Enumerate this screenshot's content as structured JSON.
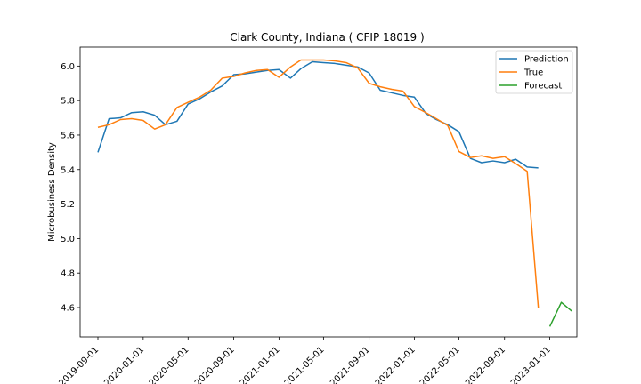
{
  "chart_data": {
    "type": "line",
    "title": "Clark County, Indiana ( CFIP 18019 )",
    "xlabel": "",
    "ylabel": "Microbusiness Density",
    "x_ticks": [
      "2019-09-01",
      "2020-01-01",
      "2020-05-01",
      "2020-09-01",
      "2021-01-01",
      "2021-05-01",
      "2021-09-01",
      "2022-01-01",
      "2022-05-01",
      "2022-09-01",
      "2023-01-01"
    ],
    "y_ticks": [
      "4.6",
      "4.8",
      "5.0",
      "5.2",
      "5.4",
      "5.6",
      "5.8",
      "6.0"
    ],
    "ylim": [
      4.43,
      6.11
    ],
    "xlim": [
      "2019-07-15",
      "2023-03-15"
    ],
    "grid": false,
    "legend_position": "upper right",
    "colors": {
      "Prediction": "#1f77b4",
      "True": "#ff7f0e",
      "Forecast": "#2ca02c"
    },
    "series": [
      {
        "name": "Prediction",
        "x": [
          "2019-09-01",
          "2019-10-01",
          "2019-11-01",
          "2019-12-01",
          "2020-01-01",
          "2020-02-01",
          "2020-03-01",
          "2020-04-01",
          "2020-05-01",
          "2020-06-01",
          "2020-07-01",
          "2020-08-01",
          "2020-09-01",
          "2020-10-01",
          "2020-11-01",
          "2020-12-01",
          "2021-01-01",
          "2021-02-01",
          "2021-03-01",
          "2021-04-01",
          "2021-05-01",
          "2021-06-01",
          "2021-07-01",
          "2021-08-01",
          "2021-09-01",
          "2021-10-01",
          "2021-11-01",
          "2021-12-01",
          "2022-01-01",
          "2022-02-01",
          "2022-03-01",
          "2022-04-01",
          "2022-05-01",
          "2022-06-01",
          "2022-07-01",
          "2022-08-01",
          "2022-09-01",
          "2022-10-01",
          "2022-11-01",
          "2022-12-01"
        ],
        "values": [
          5.5,
          5.695,
          5.7,
          5.73,
          5.735,
          5.715,
          5.66,
          5.68,
          5.78,
          5.81,
          5.85,
          5.885,
          5.95,
          5.955,
          5.965,
          5.975,
          5.98,
          5.93,
          5.985,
          6.025,
          6.02,
          6.015,
          6.005,
          5.995,
          5.96,
          5.86,
          5.845,
          5.83,
          5.82,
          5.725,
          5.69,
          5.66,
          5.62,
          5.465,
          5.44,
          5.45,
          5.44,
          5.46,
          5.415,
          5.41
        ]
      },
      {
        "name": "True",
        "x": [
          "2019-09-01",
          "2019-10-01",
          "2019-11-01",
          "2019-12-01",
          "2020-01-01",
          "2020-02-01",
          "2020-03-01",
          "2020-04-01",
          "2020-05-01",
          "2020-06-01",
          "2020-07-01",
          "2020-08-01",
          "2020-09-01",
          "2020-10-01",
          "2020-11-01",
          "2020-12-01",
          "2021-01-01",
          "2021-02-01",
          "2021-03-01",
          "2021-04-01",
          "2021-05-01",
          "2021-06-01",
          "2021-07-01",
          "2021-08-01",
          "2021-09-01",
          "2021-10-01",
          "2021-11-01",
          "2021-12-01",
          "2022-01-01",
          "2022-02-01",
          "2022-03-01",
          "2022-04-01",
          "2022-05-01",
          "2022-06-01",
          "2022-07-01",
          "2022-08-01",
          "2022-09-01",
          "2022-10-01",
          "2022-11-01",
          "2022-12-01"
        ],
        "values": [
          5.645,
          5.66,
          5.69,
          5.695,
          5.685,
          5.635,
          5.66,
          5.76,
          5.79,
          5.82,
          5.86,
          5.93,
          5.94,
          5.96,
          5.975,
          5.98,
          5.935,
          5.995,
          6.035,
          6.035,
          6.035,
          6.03,
          6.02,
          5.99,
          5.9,
          5.88,
          5.865,
          5.855,
          5.765,
          5.73,
          5.695,
          5.655,
          5.505,
          5.47,
          5.48,
          5.465,
          5.475,
          5.435,
          5.39,
          4.6
        ]
      },
      {
        "name": "Forecast",
        "x": [
          "2023-01-01",
          "2023-02-01",
          "2023-03-01"
        ],
        "values": [
          4.49,
          4.63,
          4.58
        ]
      }
    ]
  }
}
